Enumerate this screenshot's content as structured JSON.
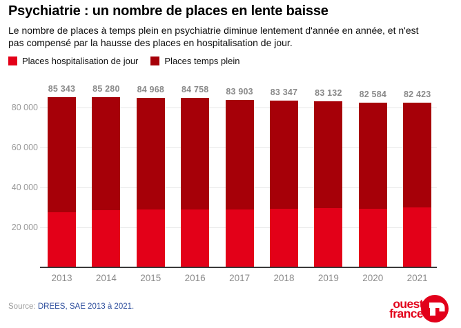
{
  "header": {
    "title": "Psychiatrie : un nombre de places en lente baisse",
    "subtitle": "Le nombre de places à temps plein en psychiatrie diminue lentement d'année en année, et n'est pas compensé par la hausse des places en hospitalisation de jour."
  },
  "legend": [
    {
      "label": "Places hospitalisation de jour",
      "color": "#e30018"
    },
    {
      "label": "Places temps plein",
      "color": "#a60008"
    }
  ],
  "chart_data": {
    "type": "bar",
    "stacked": true,
    "categories": [
      "2013",
      "2014",
      "2015",
      "2016",
      "2017",
      "2018",
      "2019",
      "2020",
      "2021"
    ],
    "series": [
      {
        "name": "Places hospitalisation de jour",
        "color": "#e30018",
        "estimated_from_pixels": true,
        "values": [
          27600,
          28500,
          28900,
          29000,
          29100,
          29400,
          29600,
          29300,
          29900
        ]
      },
      {
        "name": "Places temps plein",
        "color": "#a60008",
        "values": [
          57743,
          56780,
          56068,
          55758,
          54803,
          53947,
          53532,
          53284,
          52523
        ]
      }
    ],
    "totals": [
      85343,
      85280,
      84968,
      84758,
      83903,
      83347,
      83132,
      82584,
      82423
    ],
    "total_labels": [
      "85 343",
      "85 280",
      "84 968",
      "84 758",
      "83 903",
      "83 347",
      "83 132",
      "82 584",
      "82 423"
    ],
    "yticks": [
      20000,
      40000,
      60000,
      80000
    ],
    "ytick_labels": [
      "20 000",
      "40 000",
      "60 000",
      "80 000"
    ],
    "ylim": [
      0,
      88000
    ],
    "grid": "horizontal",
    "legend_position": "top",
    "title": "Psychiatrie : un nombre de places en lente baisse",
    "xlabel": "",
    "ylabel": ""
  },
  "footer": {
    "source_prefix": "Source:",
    "source_text": "DREES, SAE 2013 à 2021.",
    "logo_line1": "ouest",
    "logo_line2": "france",
    "logo_color": "#e2001a",
    "logo_symbol": "ouest-france-circle"
  }
}
